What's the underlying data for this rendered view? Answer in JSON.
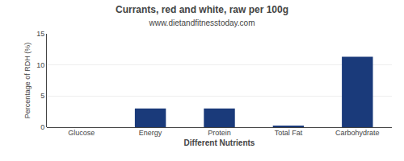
{
  "chart_data": {
    "type": "bar",
    "title": "Currants, red and white, raw per 100g",
    "subtitle": "www.dietandfitnesstoday.com",
    "xlabel": "Different Nutrients",
    "ylabel": "Percentage of RDH (%)",
    "categories": [
      "Glucose",
      "Energy",
      "Protein",
      "Total Fat",
      "Carbohydrate"
    ],
    "values": [
      0.0,
      3.0,
      3.0,
      0.2,
      11.3
    ],
    "color": "#1a3a7a",
    "ylim": [
      0,
      15
    ],
    "yticks": [
      0,
      5,
      10,
      15
    ],
    "grid": true
  }
}
